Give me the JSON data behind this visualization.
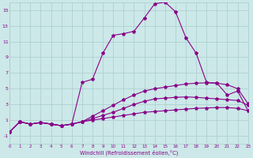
{
  "bg_color": "#cce8e8",
  "line_color": "#880088",
  "grid_color": "#aacccc",
  "xlabel": "Windchill (Refroidissement éolien,°C)",
  "xlim": [
    0,
    23
  ],
  "ylim": [
    -2,
    16
  ],
  "yticks": [
    -1,
    1,
    3,
    5,
    7,
    9,
    11,
    13,
    15
  ],
  "xticks": [
    0,
    1,
    2,
    3,
    4,
    5,
    6,
    7,
    8,
    9,
    10,
    11,
    12,
    13,
    14,
    15,
    16,
    17,
    18,
    19,
    20,
    21,
    22,
    23
  ],
  "series": [
    {
      "x": [
        0,
        1,
        2,
        3,
        4,
        5,
        6,
        7,
        8,
        9,
        10,
        11,
        12,
        13,
        14,
        15,
        16,
        17,
        18,
        19,
        20,
        21,
        22,
        23
      ],
      "y": [
        -0.5,
        0.8,
        0.5,
        0.7,
        0.5,
        0.3,
        0.5,
        0.8,
        1.0,
        1.2,
        1.4,
        1.6,
        1.8,
        2.0,
        2.1,
        2.2,
        2.3,
        2.4,
        2.5,
        2.55,
        2.6,
        2.6,
        2.5,
        2.2
      ]
    },
    {
      "x": [
        0,
        1,
        2,
        3,
        4,
        5,
        6,
        7,
        8,
        9,
        10,
        11,
        12,
        13,
        14,
        15,
        16,
        17,
        18,
        19,
        20,
        21,
        22,
        23
      ],
      "y": [
        -0.5,
        0.8,
        0.5,
        0.7,
        0.5,
        0.3,
        0.5,
        0.8,
        1.2,
        1.6,
        2.0,
        2.5,
        3.0,
        3.4,
        3.7,
        3.8,
        3.9,
        3.95,
        3.9,
        3.8,
        3.7,
        3.6,
        3.5,
        2.9
      ]
    },
    {
      "x": [
        0,
        1,
        2,
        3,
        4,
        5,
        6,
        7,
        8,
        9,
        10,
        11,
        12,
        13,
        14,
        15,
        16,
        17,
        18,
        19,
        20,
        21,
        22,
        23
      ],
      "y": [
        -0.5,
        0.8,
        0.5,
        0.7,
        0.5,
        0.3,
        0.5,
        0.8,
        1.5,
        2.2,
        2.9,
        3.6,
        4.2,
        4.7,
        5.0,
        5.2,
        5.4,
        5.6,
        5.7,
        5.75,
        5.7,
        5.5,
        5.0,
        3.1
      ]
    },
    {
      "x": [
        1,
        2,
        3,
        4,
        5,
        6,
        7,
        8,
        9,
        10,
        11,
        12,
        13,
        14,
        15,
        16,
        17,
        18,
        19,
        20,
        21,
        22,
        23
      ],
      "y": [
        0.8,
        0.5,
        0.7,
        0.5,
        0.3,
        0.5,
        5.8,
        6.2,
        9.5,
        11.8,
        12.0,
        12.3,
        14.0,
        15.8,
        16.0,
        14.8,
        11.5,
        9.5,
        5.8,
        5.7,
        4.2,
        4.7,
        2.2
      ]
    }
  ]
}
